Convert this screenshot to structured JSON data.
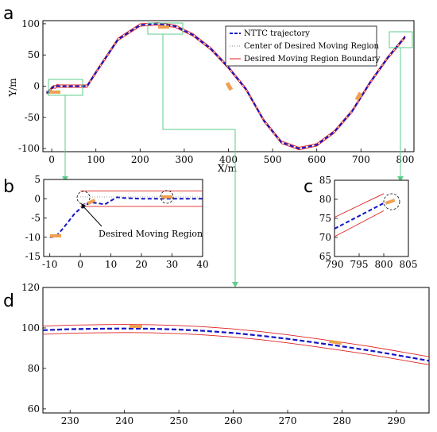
{
  "chart_data": [
    {
      "panel_label": "a",
      "type": "line",
      "xlabel": "X/m",
      "ylabel": "Y/m",
      "xlim": [
        -20,
        820
      ],
      "ylim": [
        -105,
        105
      ],
      "xticks": [
        0,
        100,
        200,
        300,
        400,
        500,
        600,
        700,
        800
      ],
      "yticks": [
        -100,
        -50,
        0,
        50,
        100
      ],
      "legend": {
        "placement": "top-right",
        "entries": [
          "NTTC trajectory",
          "Center of Desired Moving Region",
          "Desired Moving Region Boundary"
        ]
      },
      "series": [
        {
          "name": "NTTC trajectory",
          "style": "dashed",
          "color": "#1414c8",
          "x": [
            -12,
            -8,
            -4,
            0,
            4,
            8,
            12,
            20,
            40,
            60,
            80,
            100,
            150,
            200,
            240,
            280,
            320,
            360,
            400,
            440,
            480,
            520,
            560,
            600,
            640,
            680,
            720,
            760,
            800
          ],
          "y": [
            -10,
            -10,
            -7,
            -3,
            -1,
            -1.5,
            0.5,
            0,
            0,
            0,
            0,
            22,
            75,
            98,
            100,
            96,
            82,
            60,
            30,
            -5,
            -55,
            -90,
            -100,
            -94,
            -73,
            -40,
            5,
            45,
            79
          ]
        },
        {
          "name": "Center of Desired Moving Region",
          "style": "dotted",
          "color": "#888888"
        },
        {
          "name": "Desired Moving Region Boundary",
          "style": "solid",
          "color": "#e02020",
          "half_width": 2
        }
      ]
    },
    {
      "panel_label": "b",
      "type": "line",
      "xlim": [
        -12,
        40
      ],
      "ylim": [
        -15,
        5
      ],
      "xticks": [
        -10,
        0,
        10,
        20,
        30,
        40
      ],
      "yticks": [
        -15,
        -10,
        -5,
        0,
        5
      ],
      "annotation": "Desired Moving Region",
      "series": [
        {
          "name": "NTTC trajectory",
          "x": [
            -10,
            -8,
            -6,
            -4,
            -2,
            0,
            2,
            4,
            6,
            8,
            10,
            12,
            14,
            20,
            30,
            40
          ],
          "y": [
            -10,
            -9.8,
            -8,
            -6,
            -4,
            -2.5,
            -1.5,
            -1,
            -1.2,
            -1.5,
            -0.5,
            0.4,
            0.2,
            0,
            0,
            0
          ]
        },
        {
          "name": "Desired Moving Region Boundary (upper)",
          "x": [
            0,
            40
          ],
          "y": [
            2,
            2
          ]
        },
        {
          "name": "Desired Moving Region Boundary (lower)",
          "x": [
            0,
            40
          ],
          "y": [
            -2,
            -2
          ]
        }
      ]
    },
    {
      "panel_label": "c",
      "type": "line",
      "xlim": [
        790,
        805
      ],
      "ylim": [
        65,
        85
      ],
      "xticks": [
        790,
        795,
        800,
        805
      ],
      "yticks": [
        65,
        70,
        75,
        80,
        85
      ],
      "series": [
        {
          "name": "NTTC trajectory",
          "x": [
            790,
            800
          ],
          "y": [
            72.3,
            79
          ]
        },
        {
          "name": "Desired Moving Region Boundary (upper)",
          "x": [
            790,
            800
          ],
          "y": [
            75.3,
            81.5
          ]
        },
        {
          "name": "Desired Moving Region Boundary (lower)",
          "x": [
            790,
            800
          ],
          "y": [
            70.2,
            77
          ]
        }
      ]
    },
    {
      "panel_label": "d",
      "type": "line",
      "xlim": [
        225,
        296
      ],
      "ylim": [
        58,
        120
      ],
      "xticks": [
        230,
        240,
        250,
        260,
        270,
        280,
        290
      ],
      "yticks": [
        60,
        80,
        100,
        120
      ],
      "series": [
        {
          "name": "NTTC trajectory",
          "x": [
            225,
            230,
            235,
            240,
            245,
            250,
            255,
            260,
            265,
            270,
            275,
            280,
            285,
            290,
            296
          ],
          "y": [
            98.9,
            99.4,
            99.6,
            99.7,
            99.6,
            99.2,
            98.5,
            97.5,
            96.2,
            94.6,
            92.8,
            90.9,
            88.9,
            86.6,
            83.8
          ]
        },
        {
          "name": "Desired Moving Region Boundary (upper)",
          "x": [
            225,
            230,
            235,
            240,
            245,
            250,
            255,
            260,
            265,
            270,
            275,
            280,
            285,
            290,
            296
          ],
          "y": [
            100.9,
            101.4,
            101.6,
            101.7,
            101.6,
            101.2,
            100.5,
            99.5,
            98.2,
            96.6,
            94.8,
            92.9,
            90.9,
            88.6,
            85.8
          ]
        },
        {
          "name": "Desired Moving Region Boundary (lower)",
          "x": [
            225,
            230,
            235,
            240,
            245,
            250,
            255,
            260,
            265,
            270,
            275,
            280,
            285,
            290,
            296
          ],
          "y": [
            96.9,
            97.4,
            97.6,
            97.7,
            97.6,
            97.2,
            96.5,
            95.5,
            94.2,
            92.6,
            90.8,
            88.9,
            86.9,
            84.6,
            81.8
          ]
        }
      ]
    }
  ]
}
